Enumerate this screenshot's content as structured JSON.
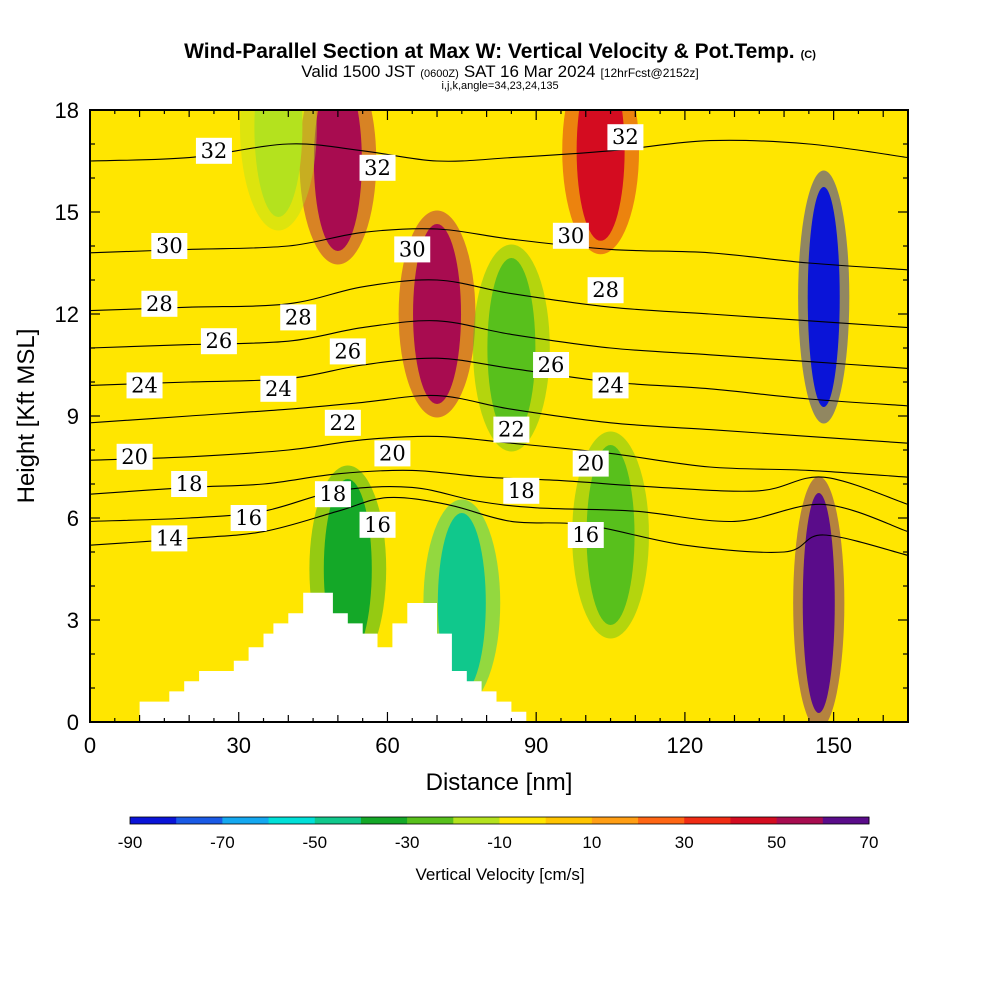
{
  "chart_data": {
    "type": "heatmap",
    "title": "Wind-Parallel Section at Max W: Vertical Velocity & Pot.Temp.",
    "copyright": "(C)",
    "subtitle_valid": "Valid 1500 JST",
    "subtitle_utc": "(0600Z)",
    "subtitle_date": "SAT 16 Mar 2024",
    "subtitle_fcst": "[12hrFcst@2152z]",
    "subtitle_ijk": "i,j,k,angle=34,23,24,135",
    "xlabel": "Distance [nm]",
    "ylabel": "Height [Kft MSL]",
    "xlim": [
      0,
      165
    ],
    "ylim": [
      0,
      18
    ],
    "x_ticks": [
      0,
      30,
      60,
      90,
      120,
      150
    ],
    "y_ticks": [
      0,
      3,
      6,
      9,
      12,
      15,
      18
    ],
    "colorbar": {
      "label": "Vertical Velocity [cm/s]",
      "levels": [
        -90,
        -80,
        -70,
        -60,
        -50,
        -40,
        -30,
        -20,
        -10,
        0,
        10,
        20,
        30,
        40,
        50,
        60,
        70
      ],
      "tick_labels": [
        "-90",
        "-70",
        "-50",
        "-30",
        "-10",
        "10",
        "30",
        "50",
        "70"
      ],
      "colors": [
        "#0a14d8",
        "#1a5ae6",
        "#14a8f0",
        "#00e0d8",
        "#10c88c",
        "#14a828",
        "#58c01c",
        "#b4e21e",
        "#ffe600",
        "#ffc400",
        "#ff9e14",
        "#ff6614",
        "#f02c14",
        "#d40c20",
        "#a80c50",
        "#5a0c8a"
      ]
    },
    "vertical_velocity_features": [
      {
        "x": 50,
        "y": 16.5,
        "w": 50
      },
      {
        "x": 70,
        "y": 12.0,
        "w": 50
      },
      {
        "x": 103,
        "y": 16.8,
        "w": 42
      },
      {
        "x": 148,
        "y": 12.5,
        "w": -90
      },
      {
        "x": 147,
        "y": 3.5,
        "w": 70
      },
      {
        "x": 75,
        "y": 3.5,
        "w": -45
      },
      {
        "x": 85,
        "y": 11.0,
        "w": -30
      },
      {
        "x": 105,
        "y": 5.5,
        "w": -25
      },
      {
        "x": 52,
        "y": 4.5,
        "w": -35
      },
      {
        "x": 38,
        "y": 17.5,
        "w": -20
      }
    ],
    "terrain_profile": [
      [
        0,
        0
      ],
      [
        10,
        0
      ],
      [
        10,
        0.6
      ],
      [
        16,
        0.6
      ],
      [
        16,
        0.9
      ],
      [
        19,
        0.9
      ],
      [
        19,
        1.2
      ],
      [
        22,
        1.2
      ],
      [
        22,
        1.5
      ],
      [
        29,
        1.5
      ],
      [
        29,
        1.8
      ],
      [
        32,
        1.8
      ],
      [
        32,
        2.2
      ],
      [
        35,
        2.2
      ],
      [
        35,
        2.6
      ],
      [
        37,
        2.6
      ],
      [
        37,
        2.9
      ],
      [
        40,
        2.9
      ],
      [
        40,
        3.2
      ],
      [
        43,
        3.2
      ],
      [
        43,
        3.8
      ],
      [
        49,
        3.8
      ],
      [
        49,
        3.2
      ],
      [
        52,
        3.2
      ],
      [
        52,
        2.9
      ],
      [
        55,
        2.9
      ],
      [
        55,
        2.6
      ],
      [
        58,
        2.6
      ],
      [
        58,
        2.2
      ],
      [
        61,
        2.2
      ],
      [
        61,
        2.9
      ],
      [
        64,
        2.9
      ],
      [
        64,
        3.5
      ],
      [
        70,
        3.5
      ],
      [
        70,
        2.6
      ],
      [
        73,
        2.6
      ],
      [
        73,
        1.5
      ],
      [
        76,
        1.5
      ],
      [
        76,
        1.2
      ],
      [
        79,
        1.2
      ],
      [
        79,
        0.9
      ],
      [
        82,
        0.9
      ],
      [
        82,
        0.6
      ],
      [
        85,
        0.6
      ],
      [
        85,
        0.3
      ],
      [
        88,
        0.3
      ],
      [
        88,
        0
      ],
      [
        165,
        0
      ]
    ],
    "theta_contours": [
      {
        "level": "14",
        "points": [
          [
            0,
            5.2
          ],
          [
            20,
            5.4
          ],
          [
            35,
            5.6
          ],
          [
            50,
            6.2
          ],
          [
            60,
            6.6
          ],
          [
            72,
            6.4
          ],
          [
            85,
            5.9
          ],
          [
            100,
            5.8
          ],
          [
            120,
            5.2
          ],
          [
            140,
            5.0
          ],
          [
            148,
            5.5
          ],
          [
            165,
            4.9
          ]
        ]
      },
      {
        "level": "16",
        "points": [
          [
            0,
            5.9
          ],
          [
            20,
            6.0
          ],
          [
            35,
            6.2
          ],
          [
            50,
            6.8
          ],
          [
            65,
            6.9
          ],
          [
            78,
            6.5
          ],
          [
            90,
            6.3
          ],
          [
            110,
            6.2
          ],
          [
            130,
            5.9
          ],
          [
            148,
            6.4
          ],
          [
            165,
            5.6
          ]
        ]
      },
      {
        "level": "18",
        "points": [
          [
            0,
            6.7
          ],
          [
            20,
            6.9
          ],
          [
            35,
            7.0
          ],
          [
            50,
            7.3
          ],
          [
            65,
            7.4
          ],
          [
            80,
            7.2
          ],
          [
            95,
            7.1
          ],
          [
            115,
            6.9
          ],
          [
            135,
            6.8
          ],
          [
            148,
            7.2
          ],
          [
            165,
            6.4
          ]
        ]
      },
      {
        "level": "20",
        "points": [
          [
            0,
            7.7
          ],
          [
            20,
            7.8
          ],
          [
            40,
            8.0
          ],
          [
            55,
            8.3
          ],
          [
            70,
            8.4
          ],
          [
            85,
            8.2
          ],
          [
            105,
            7.9
          ],
          [
            125,
            7.5
          ],
          [
            145,
            7.4
          ],
          [
            165,
            7.2
          ]
        ]
      },
      {
        "level": "22",
        "points": [
          [
            0,
            8.8
          ],
          [
            20,
            9.0
          ],
          [
            40,
            9.2
          ],
          [
            55,
            9.4
          ],
          [
            70,
            9.6
          ],
          [
            85,
            9.2
          ],
          [
            105,
            8.8
          ],
          [
            125,
            8.6
          ],
          [
            145,
            8.4
          ],
          [
            165,
            8.2
          ]
        ]
      },
      {
        "level": "24",
        "points": [
          [
            0,
            9.9
          ],
          [
            20,
            10.0
          ],
          [
            40,
            10.1
          ],
          [
            55,
            10.5
          ],
          [
            70,
            10.7
          ],
          [
            85,
            10.4
          ],
          [
            105,
            10.0
          ],
          [
            125,
            9.8
          ],
          [
            145,
            9.5
          ],
          [
            165,
            9.3
          ]
        ]
      },
      {
        "level": "26",
        "points": [
          [
            0,
            11.0
          ],
          [
            20,
            11.1
          ],
          [
            40,
            11.2
          ],
          [
            55,
            11.6
          ],
          [
            70,
            11.8
          ],
          [
            85,
            11.4
          ],
          [
            105,
            11.0
          ],
          [
            125,
            10.8
          ],
          [
            145,
            10.6
          ],
          [
            165,
            10.4
          ]
        ]
      },
      {
        "level": "28",
        "points": [
          [
            0,
            12.1
          ],
          [
            20,
            12.2
          ],
          [
            40,
            12.3
          ],
          [
            55,
            12.8
          ],
          [
            70,
            13.0
          ],
          [
            85,
            12.6
          ],
          [
            105,
            12.2
          ],
          [
            125,
            12.0
          ],
          [
            145,
            11.8
          ],
          [
            165,
            11.6
          ]
        ]
      },
      {
        "level": "30",
        "points": [
          [
            0,
            13.8
          ],
          [
            20,
            13.9
          ],
          [
            40,
            14.0
          ],
          [
            55,
            14.4
          ],
          [
            70,
            14.5
          ],
          [
            85,
            14.2
          ],
          [
            105,
            13.9
          ],
          [
            125,
            13.8
          ],
          [
            145,
            13.5
          ],
          [
            165,
            13.3
          ]
        ]
      },
      {
        "level": "32",
        "points": [
          [
            0,
            16.5
          ],
          [
            20,
            16.6
          ],
          [
            40,
            17.0
          ],
          [
            55,
            16.8
          ],
          [
            70,
            16.5
          ],
          [
            85,
            16.6
          ],
          [
            105,
            16.8
          ],
          [
            125,
            17.1
          ],
          [
            145,
            17.0
          ],
          [
            165,
            16.6
          ]
        ]
      }
    ],
    "contour_labels": [
      {
        "text": "32",
        "x": 25,
        "y": 16.8
      },
      {
        "text": "32",
        "x": 58,
        "y": 16.3
      },
      {
        "text": "32",
        "x": 108,
        "y": 17.2
      },
      {
        "text": "30",
        "x": 16,
        "y": 14.0
      },
      {
        "text": "30",
        "x": 65,
        "y": 13.9
      },
      {
        "text": "30",
        "x": 97,
        "y": 14.3
      },
      {
        "text": "28",
        "x": 14,
        "y": 12.3
      },
      {
        "text": "28",
        "x": 42,
        "y": 11.9
      },
      {
        "text": "28",
        "x": 104,
        "y": 12.7
      },
      {
        "text": "26",
        "x": 26,
        "y": 11.2
      },
      {
        "text": "26",
        "x": 52,
        "y": 10.9
      },
      {
        "text": "26",
        "x": 93,
        "y": 10.5
      },
      {
        "text": "24",
        "x": 11,
        "y": 9.9
      },
      {
        "text": "24",
        "x": 38,
        "y": 9.8
      },
      {
        "text": "24",
        "x": 105,
        "y": 9.9
      },
      {
        "text": "22",
        "x": 51,
        "y": 8.8
      },
      {
        "text": "22",
        "x": 85,
        "y": 8.6
      },
      {
        "text": "20",
        "x": 9,
        "y": 7.8
      },
      {
        "text": "20",
        "x": 61,
        "y": 7.9
      },
      {
        "text": "20",
        "x": 101,
        "y": 7.6
      },
      {
        "text": "18",
        "x": 20,
        "y": 7.0
      },
      {
        "text": "18",
        "x": 49,
        "y": 6.7
      },
      {
        "text": "18",
        "x": 87,
        "y": 6.8
      },
      {
        "text": "16",
        "x": 32,
        "y": 6.0
      },
      {
        "text": "16",
        "x": 58,
        "y": 5.8
      },
      {
        "text": "16",
        "x": 100,
        "y": 5.5
      },
      {
        "text": "14",
        "x": 16,
        "y": 5.4
      }
    ]
  }
}
